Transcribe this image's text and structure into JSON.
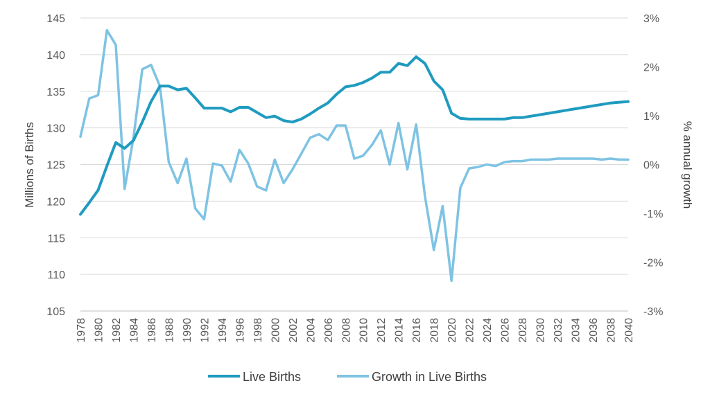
{
  "chart_data": {
    "type": "line",
    "title": "",
    "xlabel": "",
    "ylabel": "Millions of Births",
    "y2label": "% annual growth",
    "grid": true,
    "legend_position": "bottom",
    "ylim": [
      105,
      145
    ],
    "y_ticks": [
      "105",
      "110",
      "115",
      "120",
      "125",
      "130",
      "135",
      "140",
      "145"
    ],
    "y2lim": [
      -3,
      3
    ],
    "y2_ticks": [
      "-3%",
      "-2%",
      "-1%",
      "0%",
      "1%",
      "2%",
      "3%"
    ],
    "x_ticks": [
      "1978",
      "1980",
      "1982",
      "1984",
      "1986",
      "1988",
      "1990",
      "1992",
      "1994",
      "1996",
      "1998",
      "2000",
      "2002",
      "2004",
      "2006",
      "2008",
      "2010",
      "2012",
      "2014",
      "2016",
      "2018",
      "2020",
      "2022",
      "2024",
      "2026",
      "2028",
      "2030",
      "2032",
      "2034",
      "2036",
      "2038",
      "2040"
    ],
    "x": [
      1978,
      1979,
      1980,
      1981,
      1982,
      1983,
      1984,
      1985,
      1986,
      1987,
      1988,
      1989,
      1990,
      1991,
      1992,
      1993,
      1994,
      1995,
      1996,
      1997,
      1998,
      1999,
      2000,
      2001,
      2002,
      2003,
      2004,
      2005,
      2006,
      2007,
      2008,
      2009,
      2010,
      2011,
      2012,
      2013,
      2014,
      2015,
      2016,
      2017,
      2018,
      2019,
      2020,
      2021,
      2022,
      2023,
      2024,
      2025,
      2026,
      2027,
      2028,
      2029,
      2030,
      2031,
      2032,
      2033,
      2034,
      2035,
      2036,
      2037,
      2038,
      2039,
      2040
    ],
    "series": [
      {
        "name": "Live Births",
        "axis": "left",
        "color": "#1f9bbf",
        "values": [
          118.2,
          119.8,
          121.5,
          124.8,
          128.0,
          127.2,
          128.3,
          130.8,
          133.6,
          135.7,
          135.7,
          135.2,
          135.4,
          134.1,
          132.7,
          132.7,
          132.7,
          132.2,
          132.8,
          132.8,
          132.1,
          131.4,
          131.6,
          131.0,
          130.8,
          131.2,
          131.9,
          132.7,
          133.4,
          134.6,
          135.6,
          135.8,
          136.2,
          136.8,
          137.6,
          137.6,
          138.8,
          138.5,
          139.7,
          138.8,
          136.4,
          135.2,
          132.0,
          131.3,
          131.2,
          131.2,
          131.2,
          131.2,
          131.2,
          131.4,
          131.4,
          131.6,
          131.8,
          132.0,
          132.2,
          132.4,
          132.6,
          132.8,
          133.0,
          133.2,
          133.4,
          133.5,
          133.6
        ]
      },
      {
        "name": "Growth in Live Births",
        "axis": "right",
        "color": "#7ec3e3",
        "values": [
          0.57,
          1.35,
          1.42,
          2.75,
          2.45,
          -0.5,
          0.55,
          1.95,
          2.04,
          1.6,
          0.05,
          -0.38,
          0.12,
          -0.9,
          -1.12,
          0.02,
          -0.02,
          -0.35,
          0.3,
          0.02,
          -0.45,
          -0.53,
          0.1,
          -0.38,
          -0.1,
          0.22,
          0.55,
          0.62,
          0.5,
          0.8,
          0.8,
          0.12,
          0.18,
          0.4,
          0.7,
          0.0,
          0.85,
          -0.1,
          0.82,
          -0.65,
          -1.75,
          -0.85,
          -2.38,
          -0.48,
          -0.08,
          -0.05,
          0.0,
          -0.03,
          0.05,
          0.07,
          0.07,
          0.1,
          0.1,
          0.1,
          0.12,
          0.12,
          0.12,
          0.12,
          0.12,
          0.1,
          0.12,
          0.1,
          0.1
        ]
      }
    ]
  }
}
